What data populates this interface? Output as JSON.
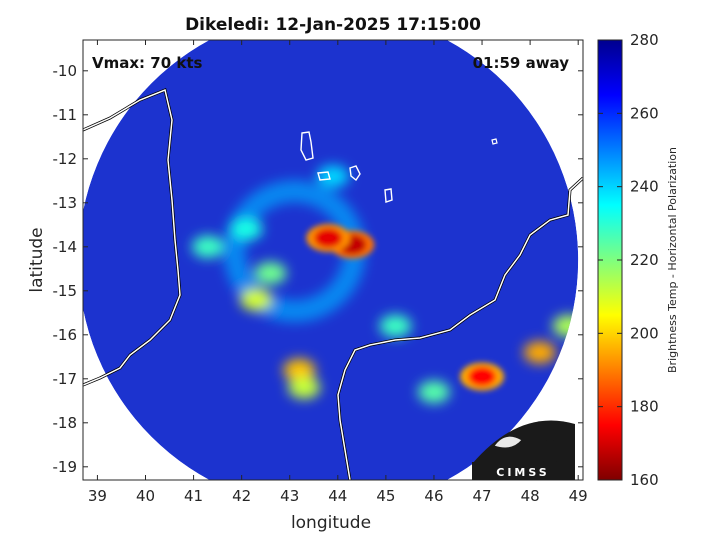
{
  "title": "Dikeledi: 12-Jan-2025 17:15:00",
  "annotations": {
    "vmax": "Vmax: 70 kts",
    "away": "01:59 away"
  },
  "logo_text": "CIMSS",
  "colors": {
    "ocean_background": "#1a1ea6",
    "disk_base": "#1c33cf",
    "coastline": "#ffffff",
    "land_border": "#000000"
  },
  "chart_data": {
    "type": "heatmap",
    "title": "Dikeledi: 12-Jan-2025 17:15:00",
    "xlabel": "longitude",
    "ylabel": "latitude",
    "xlim": [
      38.7,
      49.1
    ],
    "ylim": [
      -19.3,
      -9.3
    ],
    "x_ticks": [
      "39",
      "40",
      "41",
      "42",
      "43",
      "44",
      "45",
      "46",
      "47",
      "48",
      "49"
    ],
    "y_ticks": [
      "-10",
      "-11",
      "-12",
      "-13",
      "-14",
      "-15",
      "-16",
      "-17",
      "-18",
      "-19"
    ],
    "x_tick_values": [
      39,
      40,
      41,
      42,
      43,
      44,
      45,
      46,
      47,
      48,
      49
    ],
    "y_tick_values": [
      -10,
      -11,
      -12,
      -13,
      -14,
      -15,
      -16,
      -17,
      -18,
      -19
    ],
    "colorbar": {
      "label": "Brightness Temp - Horizontal Polarization",
      "range": [
        160,
        280
      ],
      "ticks": [
        "280",
        "260",
        "240",
        "220",
        "200",
        "180",
        "160"
      ],
      "tick_values": [
        280,
        260,
        240,
        220,
        200,
        180,
        160
      ],
      "colormap": [
        "#7f0000",
        "#ff0000",
        "#ff7f00",
        "#ffff00",
        "#7fff7f",
        "#00ffff",
        "#007fff",
        "#0000ff",
        "#00008f"
      ]
    },
    "swath": {
      "center_lon": 43.8,
      "center_lat": -14.3,
      "radius_deg": 5.2
    },
    "features": [
      {
        "name": "eyewall",
        "lon": 44.3,
        "lat": -13.95,
        "value": 168
      },
      {
        "name": "eyewall",
        "lon": 43.8,
        "lat": -13.8,
        "value": 172
      },
      {
        "name": "convection",
        "lon": 47.0,
        "lat": -16.95,
        "value": 175
      },
      {
        "name": "convection",
        "lon": 48.2,
        "lat": -16.4,
        "value": 195
      },
      {
        "name": "rainband",
        "lon": 42.1,
        "lat": -13.6,
        "value": 232
      },
      {
        "name": "rainband",
        "lon": 41.3,
        "lat": -14.0,
        "value": 228
      },
      {
        "name": "rainband",
        "lon": 42.6,
        "lat": -14.6,
        "value": 222
      },
      {
        "name": "rainband",
        "lon": 42.3,
        "lat": -15.2,
        "value": 210
      },
      {
        "name": "rainband",
        "lon": 43.2,
        "lat": -16.8,
        "value": 198
      },
      {
        "name": "rainband",
        "lon": 43.3,
        "lat": -17.2,
        "value": 212
      },
      {
        "name": "rainband",
        "lon": 45.2,
        "lat": -15.8,
        "value": 228
      },
      {
        "name": "rainband",
        "lon": 46.0,
        "lat": -17.3,
        "value": 225
      },
      {
        "name": "rainband",
        "lon": 48.8,
        "lat": -15.8,
        "value": 215
      },
      {
        "name": "rainband",
        "lon": 43.9,
        "lat": -12.4,
        "value": 240
      }
    ]
  }
}
